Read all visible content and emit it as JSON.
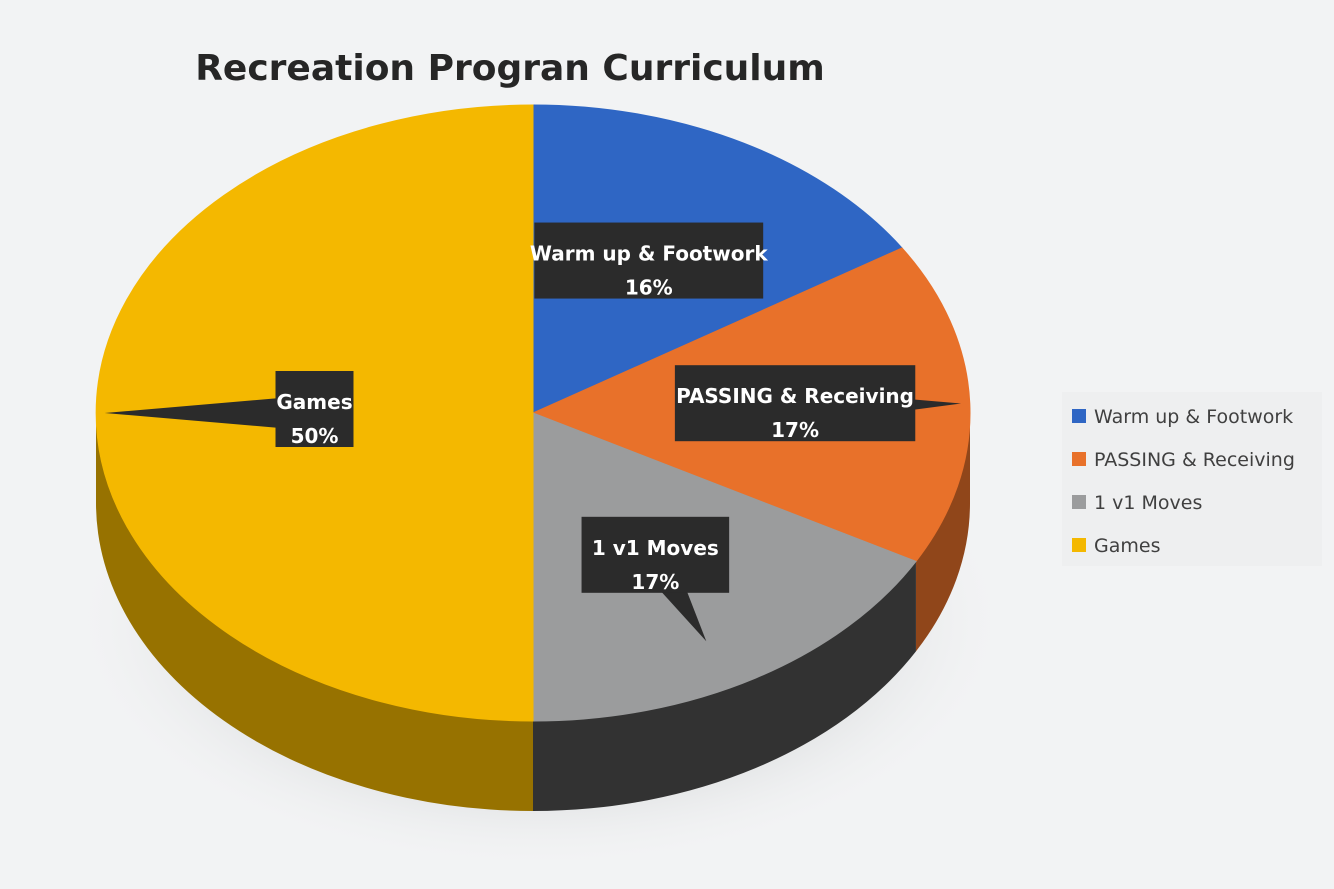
{
  "chart_data": {
    "type": "pie",
    "title": "Recreation Progran Curriculum",
    "categories": [
      "Warm up & Footwork",
      "PASSING & Receiving",
      "1 v1  Moves",
      "Games"
    ],
    "values": [
      16,
      17,
      17,
      50
    ],
    "labels": [
      "16%",
      "17%",
      "17%",
      "50%"
    ],
    "colors": [
      "#2f66c4",
      "#e8712a",
      "#9b9c9d",
      "#f4b800"
    ],
    "legend_position": "right",
    "style": "3d"
  }
}
